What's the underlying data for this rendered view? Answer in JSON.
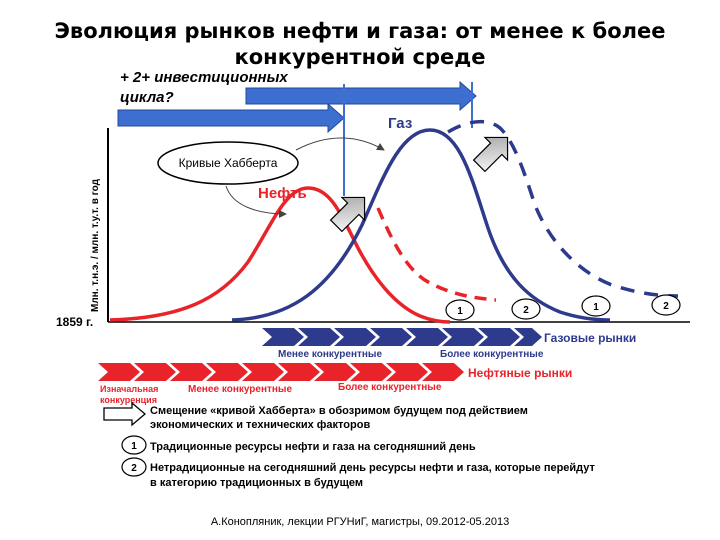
{
  "slide": {
    "title_line1": "Эволюция рынков нефти и газа: от менее к более",
    "title_line2": "конкурентной среде",
    "footer": "А.Конопляник, лекции РГУНиГ, магистры, 09.2012-05.2013"
  },
  "diagram": {
    "investment_cycles_line1": "+ 2+ инвестиционных",
    "investment_cycles_line2": "цикла?",
    "y_axis_label": "Млн. т.н.э. / млн. т.у.т. в год",
    "start_year": "1859 г.",
    "hubbert_label": "Кривые Хабберта",
    "oil_label": "Нефть",
    "gas_label": "Газ",
    "markers": [
      "1",
      "2",
      "1",
      "2"
    ],
    "gas_market": {
      "name": "Газовые рынки",
      "stage_less": "Менее конкурентные",
      "stage_more": "Более конкурентные"
    },
    "oil_market": {
      "name": "Нефтяные рынки",
      "stage_initial_line1": "Изначальная",
      "stage_initial_line2": "конкуренция",
      "stage_less": "Менее конкурентные",
      "stage_more": "Более конкурентные"
    },
    "colors": {
      "oil": "#e8232a",
      "gas": "#2e3a8c",
      "arrow_blue": "#3d6fd0"
    }
  },
  "legend": {
    "shift_line1": "Смещение «кривой Хабберта» в обозримом будущем под действием",
    "shift_line2": "экономических и технических факторов",
    "item1_marker": "1",
    "item1_text": "Традиционные ресурсы нефти и газа на сегодняшний день",
    "item2_marker": "2",
    "item2_line1": "Нетрадиционные на сегодняшний день ресурсы нефти и газа, которые перейдут",
    "item2_line2": "в категорию традиционных в будущем"
  }
}
